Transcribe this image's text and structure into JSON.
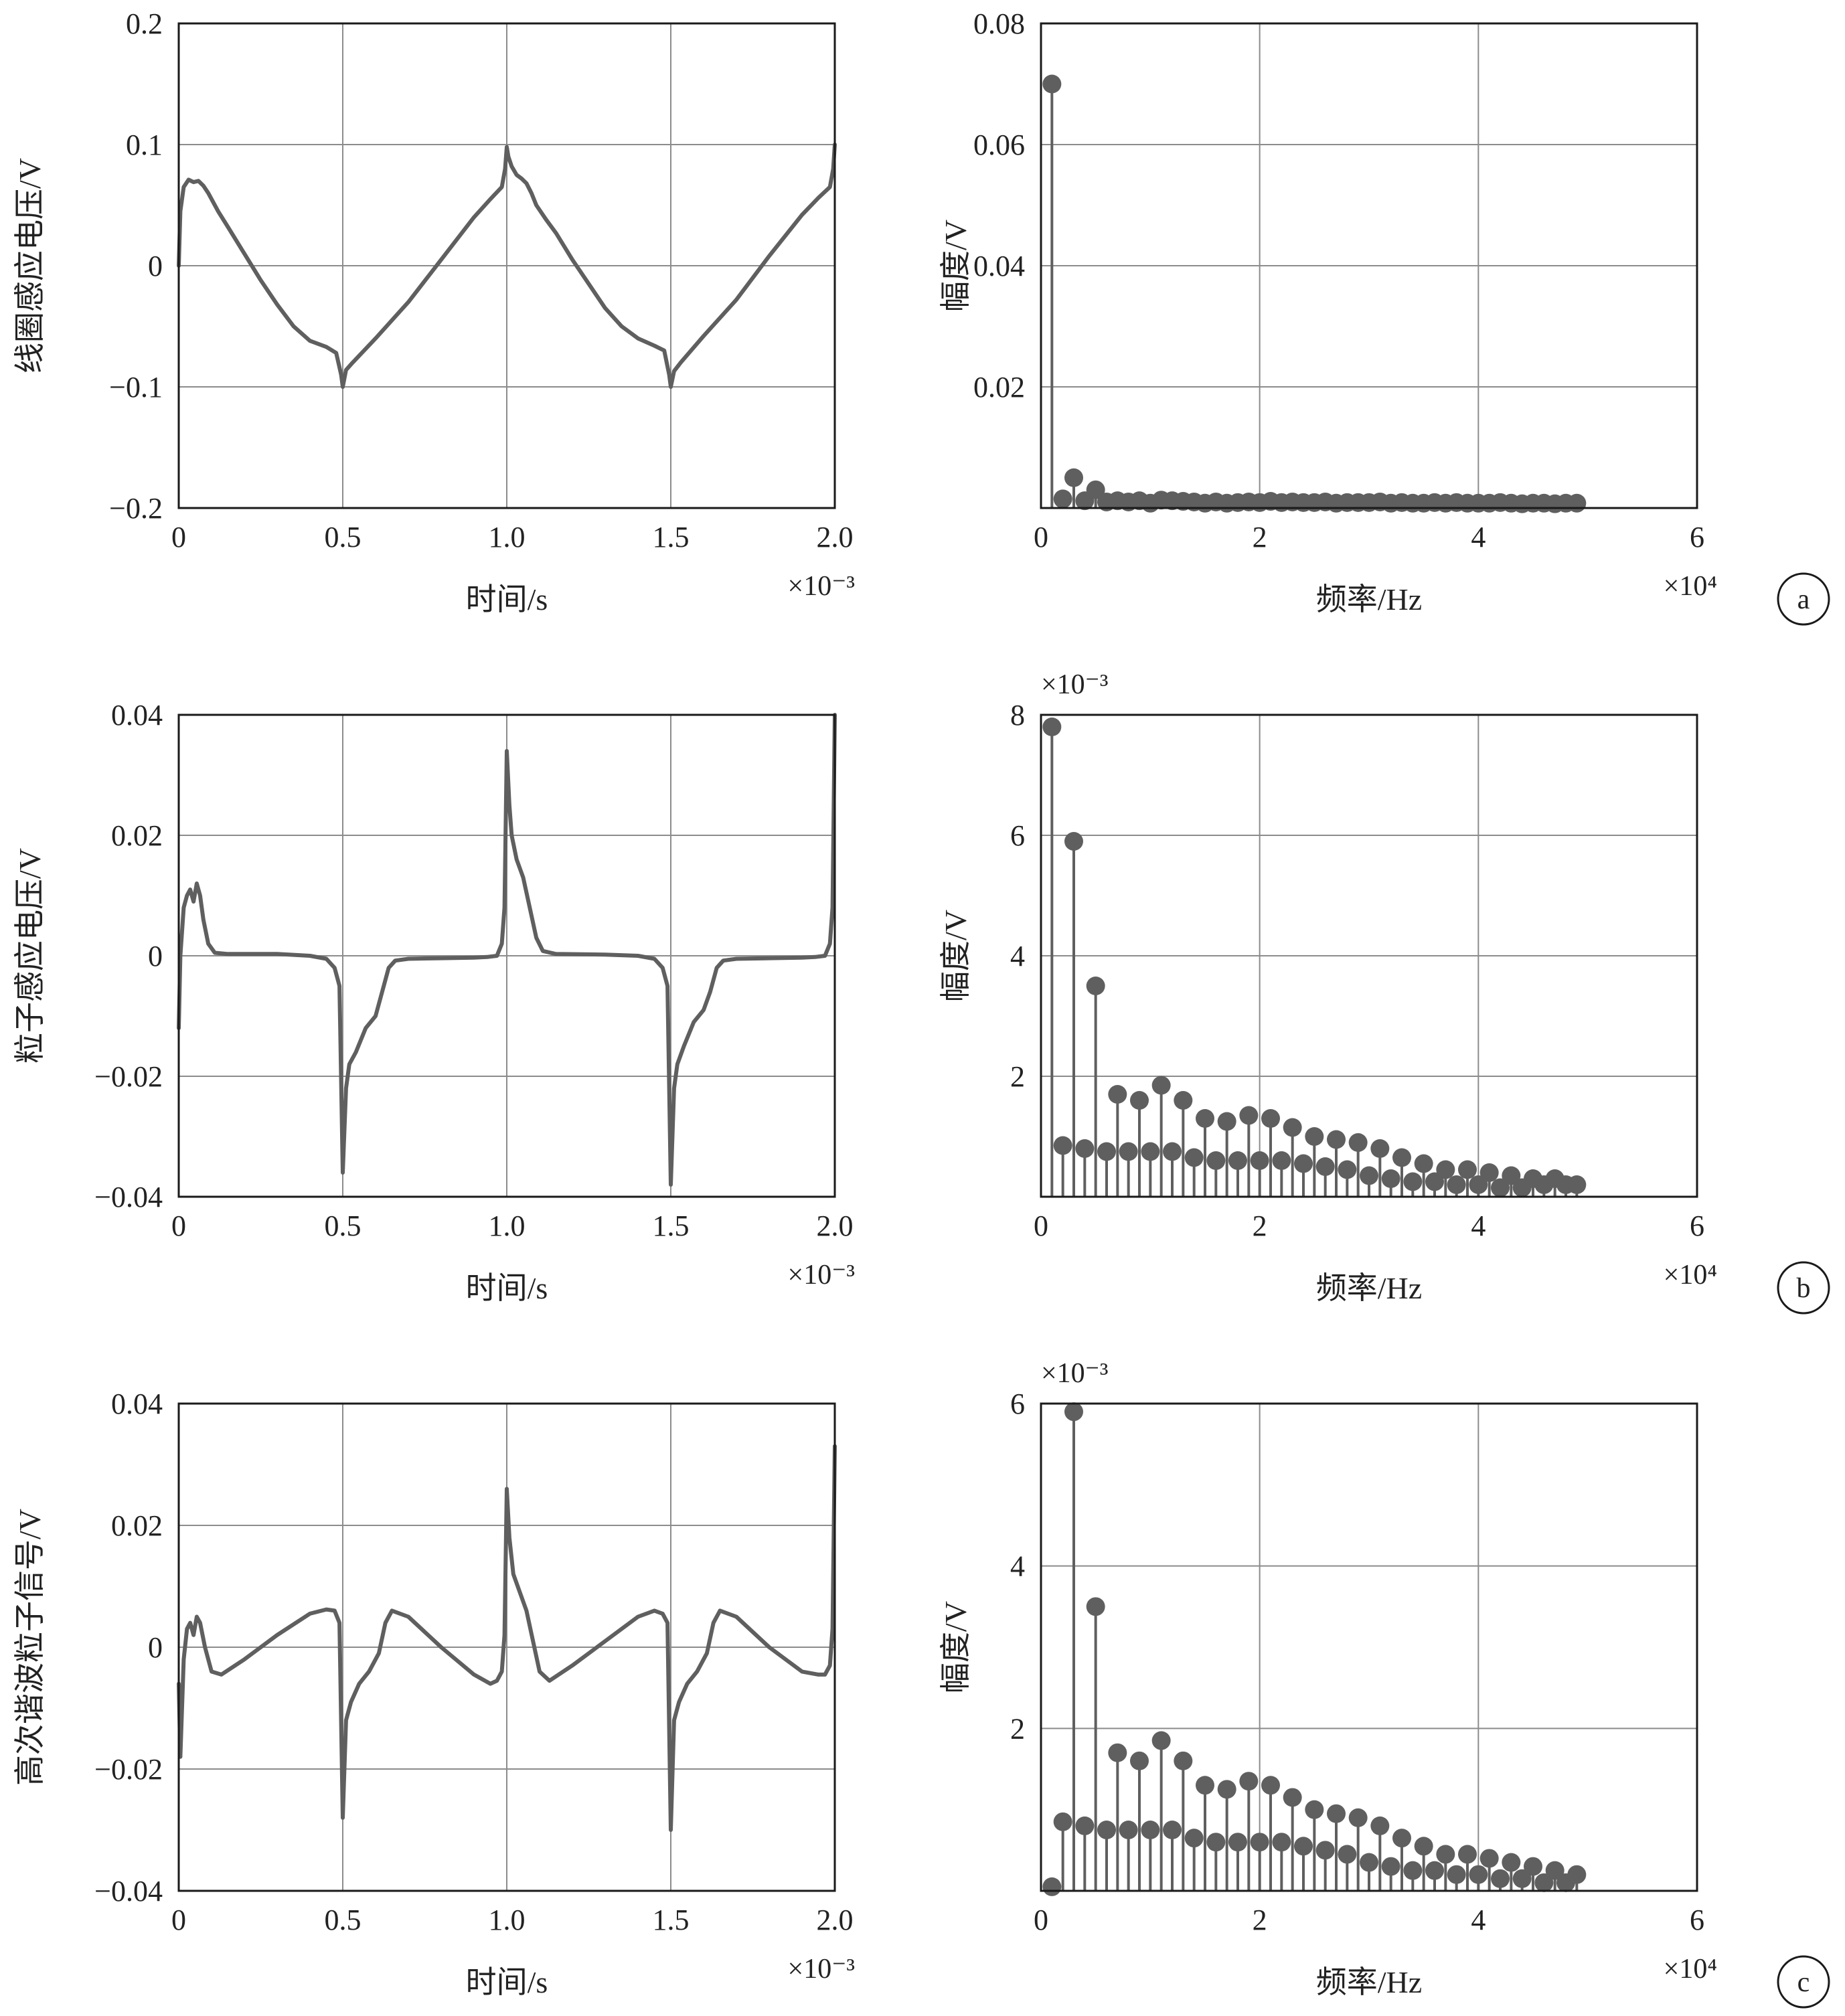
{
  "figure": {
    "stroke_color": "#5f5f5f",
    "grid_color": "#8c8c8c",
    "axes_color": "#1a1a1a"
  },
  "chart_data": [
    {
      "panel": "a",
      "side": "left",
      "type": "line",
      "xlabel": "时间/s",
      "ylabel": "线圈感应电压/V",
      "xlim": [
        0,
        2.0
      ],
      "ylim": [
        -0.2,
        0.2
      ],
      "xticks": [
        0,
        0.5,
        1.0,
        1.5,
        2.0
      ],
      "xtick_labels": [
        "0",
        "0.5",
        "1.0",
        "1.5",
        "2.0"
      ],
      "yticks": [
        -0.2,
        -0.1,
        0,
        0.1,
        0.2
      ],
      "ytick_labels": [
        "−0.2",
        "−0.1",
        "0",
        "0.1",
        "0.2"
      ],
      "x_multiplier": "×10⁻³",
      "y_multiplier": "",
      "grid": true,
      "series": [
        {
          "x": [
            0,
            0.005,
            0.015,
            0.03,
            0.045,
            0.06,
            0.075,
            0.09,
            0.12,
            0.15,
            0.2,
            0.25,
            0.3,
            0.35,
            0.4,
            0.45,
            0.48,
            0.495,
            0.5,
            0.51,
            0.53,
            0.6,
            0.7,
            0.8,
            0.9,
            0.95,
            0.985,
            0.995,
            1.0,
            1.005,
            1.015,
            1.03,
            1.045,
            1.06,
            1.075,
            1.09,
            1.12,
            1.15,
            1.2,
            1.25,
            1.3,
            1.35,
            1.4,
            1.45,
            1.48,
            1.495,
            1.5,
            1.51,
            1.53,
            1.6,
            1.7,
            1.8,
            1.9,
            1.95,
            1.985,
            1.995,
            2.0
          ],
          "y": [
            0.0,
            0.045,
            0.065,
            0.071,
            0.069,
            0.07,
            0.066,
            0.06,
            0.045,
            0.032,
            0.01,
            -0.012,
            -0.032,
            -0.05,
            -0.062,
            -0.067,
            -0.072,
            -0.09,
            -0.1,
            -0.086,
            -0.08,
            -0.06,
            -0.03,
            0.005,
            0.04,
            0.055,
            0.065,
            0.08,
            0.098,
            0.09,
            0.082,
            0.075,
            0.072,
            0.068,
            0.06,
            0.05,
            0.038,
            0.027,
            0.005,
            -0.015,
            -0.035,
            -0.05,
            -0.06,
            -0.066,
            -0.07,
            -0.09,
            -0.1,
            -0.087,
            -0.08,
            -0.058,
            -0.028,
            0.008,
            0.042,
            0.056,
            0.065,
            0.08,
            0.1
          ]
        }
      ]
    },
    {
      "panel": "a",
      "side": "right",
      "type": "stem",
      "xlabel": "频率/Hz",
      "ylabel": "幅度/V",
      "xlim": [
        0,
        6
      ],
      "ylim": [
        0,
        0.08
      ],
      "xticks": [
        0,
        2,
        4,
        6
      ],
      "xtick_labels": [
        "0",
        "2",
        "4",
        "6"
      ],
      "yticks": [
        0.02,
        0.04,
        0.06,
        0.08
      ],
      "ytick_labels": [
        "0.02",
        "0.04",
        "0.06",
        "0.08"
      ],
      "x_multiplier": "×10⁴",
      "y_multiplier": "",
      "grid": true,
      "series": [
        {
          "x": [
            0.1,
            0.2,
            0.3,
            0.4,
            0.5,
            0.6,
            0.7,
            0.8,
            0.9,
            1.0,
            1.1,
            1.2,
            1.3,
            1.4,
            1.5,
            1.6,
            1.7,
            1.8,
            1.9,
            2.0,
            2.1,
            2.2,
            2.3,
            2.4,
            2.5,
            2.6,
            2.7,
            2.8,
            2.9,
            3.0,
            3.1,
            3.2,
            3.3,
            3.4,
            3.5,
            3.6,
            3.7,
            3.8,
            3.9,
            4.0,
            4.1,
            4.2,
            4.3,
            4.4,
            4.5,
            4.6,
            4.7,
            4.8,
            4.9
          ],
          "y": [
            0.07,
            0.0015,
            0.005,
            0.0012,
            0.003,
            0.001,
            0.0012,
            0.001,
            0.0012,
            0.0008,
            0.0013,
            0.0012,
            0.0011,
            0.001,
            0.0008,
            0.001,
            0.0008,
            0.0009,
            0.001,
            0.0009,
            0.0011,
            0.0009,
            0.001,
            0.0009,
            0.0009,
            0.001,
            0.0008,
            0.0009,
            0.0009,
            0.0009,
            0.001,
            0.0008,
            0.0009,
            0.0008,
            0.0008,
            0.0009,
            0.0008,
            0.0009,
            0.0008,
            0.0008,
            0.0008,
            0.0009,
            0.0008,
            0.0007,
            0.0008,
            0.0008,
            0.0007,
            0.0008,
            0.0008
          ]
        }
      ]
    },
    {
      "panel": "b",
      "side": "left",
      "type": "line",
      "xlabel": "时间/s",
      "ylabel": "粒子感应电压/V",
      "xlim": [
        0,
        2.0
      ],
      "ylim": [
        -0.04,
        0.04
      ],
      "xticks": [
        0,
        0.5,
        1.0,
        1.5,
        2.0
      ],
      "xtick_labels": [
        "0",
        "0.5",
        "1.0",
        "1.5",
        "2.0"
      ],
      "yticks": [
        -0.04,
        -0.02,
        0,
        0.02,
        0.04
      ],
      "ytick_labels": [
        "−0.04",
        "−0.02",
        "0",
        "0.02",
        "0.04"
      ],
      "x_multiplier": "×10⁻³",
      "y_multiplier": "",
      "grid": true,
      "series": [
        {
          "x": [
            0,
            0.005,
            0.015,
            0.025,
            0.035,
            0.045,
            0.055,
            0.065,
            0.075,
            0.09,
            0.11,
            0.15,
            0.3,
            0.4,
            0.45,
            0.475,
            0.49,
            0.5,
            0.51,
            0.52,
            0.54,
            0.57,
            0.6,
            0.62,
            0.64,
            0.66,
            0.7,
            0.8,
            0.9,
            0.94,
            0.97,
            0.985,
            0.993,
            1.0,
            1.008,
            1.015,
            1.03,
            1.05,
            1.07,
            1.09,
            1.11,
            1.15,
            1.3,
            1.4,
            1.45,
            1.475,
            1.49,
            1.5,
            1.51,
            1.52,
            1.54,
            1.57,
            1.6,
            1.62,
            1.64,
            1.66,
            1.7,
            1.8,
            1.9,
            1.94,
            1.97,
            1.985,
            1.993,
            2.0
          ],
          "y": [
            -0.012,
            0.0,
            0.008,
            0.01,
            0.011,
            0.009,
            0.012,
            0.01,
            0.006,
            0.002,
            0.0005,
            0.0003,
            0.0003,
            0.0,
            -0.0005,
            -0.002,
            -0.005,
            -0.036,
            -0.022,
            -0.018,
            -0.016,
            -0.012,
            -0.01,
            -0.006,
            -0.002,
            -0.0008,
            -0.0005,
            -0.0004,
            -0.0003,
            -0.0002,
            0.0,
            0.002,
            0.008,
            0.034,
            0.025,
            0.02,
            0.016,
            0.013,
            0.008,
            0.003,
            0.0008,
            0.0003,
            0.0002,
            0.0,
            -0.0005,
            -0.002,
            -0.005,
            -0.038,
            -0.022,
            -0.018,
            -0.015,
            -0.011,
            -0.009,
            -0.006,
            -0.002,
            -0.0008,
            -0.0005,
            -0.0004,
            -0.0003,
            -0.0002,
            0.0,
            0.002,
            0.008,
            0.04
          ]
        }
      ]
    },
    {
      "panel": "b",
      "side": "right",
      "type": "stem",
      "xlabel": "频率/Hz",
      "ylabel": "幅度/V",
      "xlim": [
        0,
        6
      ],
      "ylim": [
        0,
        8
      ],
      "xticks": [
        0,
        2,
        4,
        6
      ],
      "xtick_labels": [
        "0",
        "2",
        "4",
        "6"
      ],
      "yticks": [
        2,
        4,
        6,
        8
      ],
      "ytick_labels": [
        "2",
        "4",
        "6",
        "8"
      ],
      "x_multiplier": "×10⁴",
      "y_multiplier": "×10⁻³",
      "grid": true,
      "series": [
        {
          "x": [
            0.1,
            0.2,
            0.3,
            0.4,
            0.5,
            0.6,
            0.7,
            0.8,
            0.9,
            1.0,
            1.1,
            1.2,
            1.3,
            1.4,
            1.5,
            1.6,
            1.7,
            1.8,
            1.9,
            2.0,
            2.1,
            2.2,
            2.3,
            2.4,
            2.5,
            2.6,
            2.7,
            2.8,
            2.9,
            3.0,
            3.1,
            3.2,
            3.3,
            3.4,
            3.5,
            3.6,
            3.7,
            3.8,
            3.9,
            4.0,
            4.1,
            4.2,
            4.3,
            4.4,
            4.5,
            4.6,
            4.7,
            4.8,
            4.9
          ],
          "y": [
            7.8,
            0.85,
            5.9,
            0.8,
            3.5,
            0.75,
            1.7,
            0.75,
            1.6,
            0.75,
            1.85,
            0.75,
            1.6,
            0.65,
            1.3,
            0.6,
            1.25,
            0.6,
            1.35,
            0.6,
            1.3,
            0.6,
            1.15,
            0.55,
            1.0,
            0.5,
            0.95,
            0.45,
            0.9,
            0.35,
            0.8,
            0.3,
            0.65,
            0.25,
            0.55,
            0.25,
            0.45,
            0.2,
            0.45,
            0.2,
            0.4,
            0.15,
            0.35,
            0.15,
            0.3,
            0.2,
            0.3,
            0.2,
            0.2
          ]
        }
      ]
    },
    {
      "panel": "c",
      "side": "left",
      "type": "line",
      "xlabel": "时间/s",
      "ylabel": "高次谐波粒子信号/V",
      "xlim": [
        0,
        2.0
      ],
      "ylim": [
        -0.04,
        0.04
      ],
      "xticks": [
        0,
        0.5,
        1.0,
        1.5,
        2.0
      ],
      "xtick_labels": [
        "0",
        "0.5",
        "1.0",
        "1.5",
        "2.0"
      ],
      "yticks": [
        -0.04,
        -0.02,
        0,
        0.02,
        0.04
      ],
      "ytick_labels": [
        "−0.04",
        "−0.02",
        "0",
        "0.02",
        "0.04"
      ],
      "x_multiplier": "×10⁻³",
      "y_multiplier": "",
      "grid": true,
      "series": [
        {
          "x": [
            0,
            0.005,
            0.015,
            0.025,
            0.035,
            0.045,
            0.055,
            0.065,
            0.08,
            0.1,
            0.13,
            0.2,
            0.3,
            0.4,
            0.45,
            0.475,
            0.49,
            0.5,
            0.51,
            0.525,
            0.55,
            0.58,
            0.61,
            0.63,
            0.65,
            0.7,
            0.8,
            0.9,
            0.95,
            0.97,
            0.985,
            0.993,
            1.0,
            1.008,
            1.02,
            1.04,
            1.06,
            1.08,
            1.1,
            1.13,
            1.2,
            1.3,
            1.4,
            1.45,
            1.475,
            1.49,
            1.5,
            1.51,
            1.525,
            1.55,
            1.58,
            1.61,
            1.63,
            1.65,
            1.7,
            1.8,
            1.9,
            1.95,
            1.97,
            1.985,
            1.993,
            2.0
          ],
          "y": [
            -0.006,
            -0.018,
            -0.002,
            0.003,
            0.004,
            0.002,
            0.005,
            0.004,
            0.0,
            -0.004,
            -0.0045,
            -0.002,
            0.002,
            0.0055,
            0.0062,
            0.006,
            0.004,
            -0.028,
            -0.012,
            -0.009,
            -0.006,
            -0.004,
            -0.001,
            0.004,
            0.006,
            0.005,
            0.0,
            -0.0045,
            -0.006,
            -0.0055,
            -0.004,
            0.002,
            0.026,
            0.018,
            0.012,
            0.009,
            0.006,
            0.001,
            -0.004,
            -0.0055,
            -0.003,
            0.001,
            0.005,
            0.006,
            0.0055,
            0.004,
            -0.03,
            -0.012,
            -0.009,
            -0.006,
            -0.004,
            -0.001,
            0.004,
            0.006,
            0.005,
            0.0,
            -0.004,
            -0.0045,
            -0.0045,
            -0.003,
            0.003,
            0.033
          ]
        }
      ]
    },
    {
      "panel": "c",
      "side": "right",
      "type": "stem",
      "xlabel": "频率/Hz",
      "ylabel": "幅度/V",
      "xlim": [
        0,
        6
      ],
      "ylim": [
        0,
        6
      ],
      "xticks": [
        0,
        2,
        4,
        6
      ],
      "xtick_labels": [
        "0",
        "2",
        "4",
        "6"
      ],
      "yticks": [
        2,
        4,
        6
      ],
      "ytick_labels": [
        "2",
        "4",
        "6"
      ],
      "x_multiplier": "×10⁴",
      "y_multiplier": "×10⁻³",
      "grid": true,
      "series": [
        {
          "x": [
            0.1,
            0.2,
            0.3,
            0.4,
            0.5,
            0.6,
            0.7,
            0.8,
            0.9,
            1.0,
            1.1,
            1.2,
            1.3,
            1.4,
            1.5,
            1.6,
            1.7,
            1.8,
            1.9,
            2.0,
            2.1,
            2.2,
            2.3,
            2.4,
            2.5,
            2.6,
            2.7,
            2.8,
            2.9,
            3.0,
            3.1,
            3.2,
            3.3,
            3.4,
            3.5,
            3.6,
            3.7,
            3.8,
            3.9,
            4.0,
            4.1,
            4.2,
            4.3,
            4.4,
            4.5,
            4.6,
            4.7,
            4.8,
            4.9
          ],
          "y": [
            0.05,
            0.85,
            5.9,
            0.8,
            3.5,
            0.75,
            1.7,
            0.75,
            1.6,
            0.75,
            1.85,
            0.75,
            1.6,
            0.65,
            1.3,
            0.6,
            1.25,
            0.6,
            1.35,
            0.6,
            1.3,
            0.6,
            1.15,
            0.55,
            1.0,
            0.5,
            0.95,
            0.45,
            0.9,
            0.35,
            0.8,
            0.3,
            0.65,
            0.25,
            0.55,
            0.25,
            0.45,
            0.2,
            0.45,
            0.2,
            0.4,
            0.15,
            0.35,
            0.15,
            0.3,
            0.1,
            0.25,
            0.1,
            0.2
          ]
        }
      ]
    }
  ]
}
